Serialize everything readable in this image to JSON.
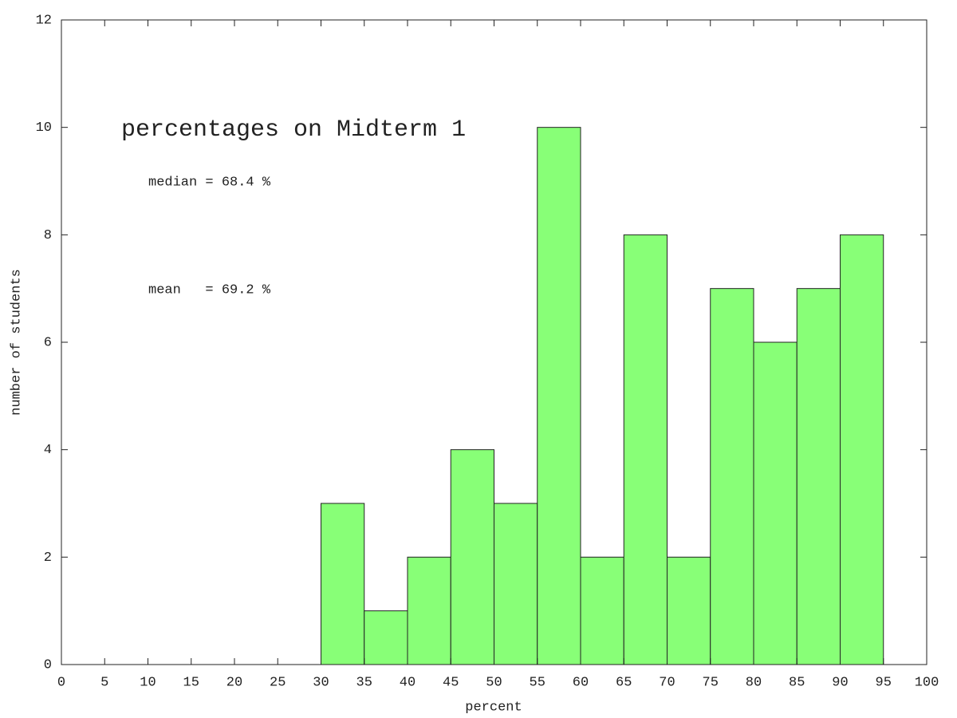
{
  "chart_data": {
    "type": "histogram",
    "title": "percentages on Midterm 1",
    "annotations": [
      "median = 68.4 %",
      "mean   = 69.2 %"
    ],
    "x_label": "percent",
    "y_label": "number of students",
    "bins": [
      30,
      35,
      40,
      45,
      50,
      55,
      60,
      65,
      70,
      75,
      80,
      85,
      90,
      95
    ],
    "counts": [
      3,
      1,
      2,
      4,
      3,
      10,
      2,
      8,
      2,
      7,
      6,
      7,
      8
    ],
    "color": "#88ff77",
    "xlim": [
      0,
      100
    ],
    "xticks": [
      0,
      5,
      10,
      15,
      20,
      25,
      30,
      35,
      40,
      45,
      50,
      55,
      60,
      65,
      70,
      75,
      80,
      85,
      90,
      95,
      100
    ],
    "ylim": [
      0,
      12
    ],
    "yticks": [
      0,
      2,
      4,
      6,
      8,
      10,
      12
    ]
  }
}
